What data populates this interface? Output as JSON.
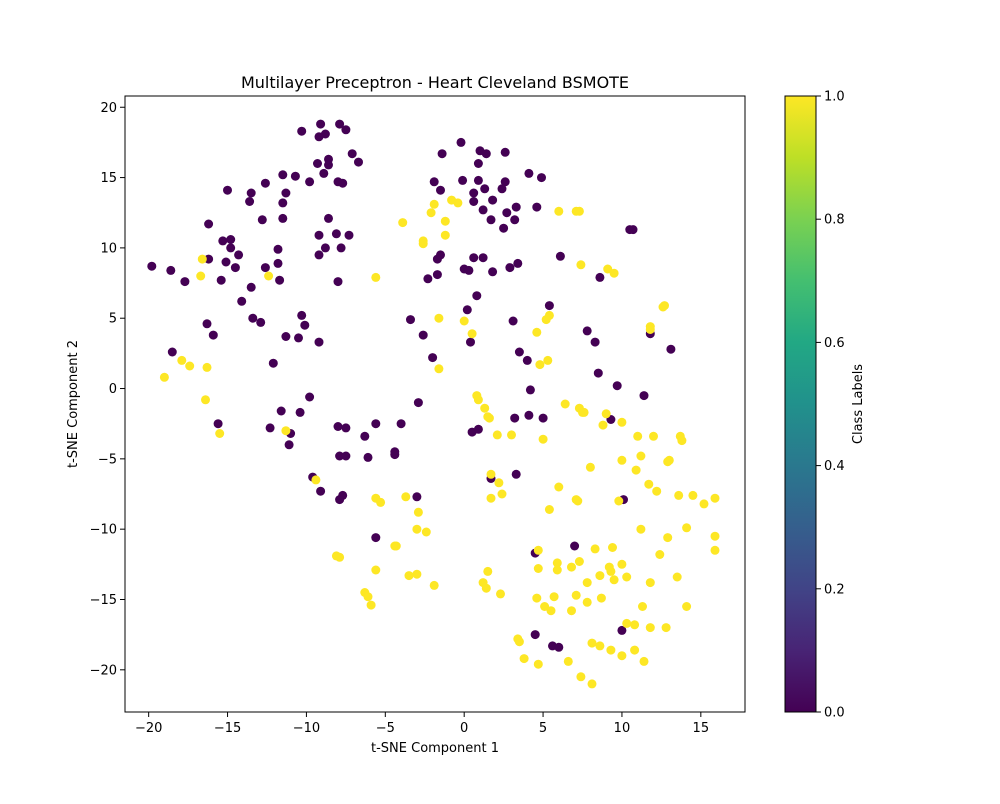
{
  "chart_data": {
    "type": "scatter",
    "title": "Multilayer Preceptron - Heart Cleveland BSMOTE",
    "xlabel": "t-SNE Component 1",
    "ylabel": "t-SNE Component 2",
    "xlim": [
      -21.5,
      17.8
    ],
    "ylim": [
      -23.0,
      20.8
    ],
    "xticks": [
      -20,
      -15,
      -10,
      -5,
      0,
      5,
      10,
      15
    ],
    "yticks": [
      -20,
      -15,
      -10,
      -5,
      0,
      5,
      10,
      15,
      20
    ],
    "grid": false,
    "colorbar": {
      "label": "Class Labels",
      "colormap": "viridis",
      "range": [
        0.0,
        1.0
      ],
      "ticks": [
        "0.0",
        "0.2",
        "0.4",
        "0.6",
        "0.8",
        "1.0"
      ]
    },
    "classes": [
      {
        "value": 0,
        "color": "#440154"
      },
      {
        "value": 1,
        "color": "#fde725"
      }
    ],
    "series": [
      {
        "label_value": 0,
        "points": [
          [
            -10.3,
            18.3
          ],
          [
            -9.1,
            18.8
          ],
          [
            -8.8,
            18.1
          ],
          [
            -7.9,
            18.8
          ],
          [
            -7.5,
            18.4
          ],
          [
            -9.2,
            17.9
          ],
          [
            -7.1,
            16.7
          ],
          [
            -6.7,
            16.1
          ],
          [
            -8.6,
            16.3
          ],
          [
            -8.6,
            15.9
          ],
          [
            -9.3,
            16.0
          ],
          [
            -8.9,
            15.3
          ],
          [
            -8.0,
            14.7
          ],
          [
            -7.7,
            14.6
          ],
          [
            -9.8,
            14.7
          ],
          [
            -10.7,
            15.1
          ],
          [
            -11.5,
            15.2
          ],
          [
            -12.6,
            14.6
          ],
          [
            -13.5,
            13.9
          ],
          [
            -15.0,
            14.1
          ],
          [
            -13.6,
            13.3
          ],
          [
            -11.3,
            13.9
          ],
          [
            -11.5,
            13.2
          ],
          [
            -11.5,
            12.1
          ],
          [
            -12.8,
            12.0
          ],
          [
            -8.6,
            12.1
          ],
          [
            -8.1,
            11.0
          ],
          [
            -9.2,
            10.9
          ],
          [
            -7.3,
            10.9
          ],
          [
            -8.8,
            10.0
          ],
          [
            -7.8,
            10.0
          ],
          [
            -9.2,
            9.5
          ],
          [
            -14.8,
            10.6
          ],
          [
            -15.3,
            10.5
          ],
          [
            -14.8,
            10.0
          ],
          [
            -14.3,
            9.5
          ],
          [
            -15.1,
            9.0
          ],
          [
            -14.5,
            8.6
          ],
          [
            -16.2,
            9.2
          ],
          [
            -11.8,
            9.9
          ],
          [
            -11.8,
            8.9
          ],
          [
            -12.6,
            8.6
          ],
          [
            -11.7,
            7.7
          ],
          [
            -15.4,
            7.7
          ],
          [
            -16.2,
            11.7
          ],
          [
            -13.5,
            7.2
          ],
          [
            -14.1,
            6.2
          ],
          [
            -18.6,
            8.4
          ],
          [
            -19.8,
            8.7
          ],
          [
            -17.7,
            7.6
          ],
          [
            -8.0,
            7.6
          ],
          [
            -10.3,
            5.2
          ],
          [
            -10.1,
            4.5
          ],
          [
            -13.4,
            5.0
          ],
          [
            -12.9,
            4.7
          ],
          [
            -16.3,
            4.6
          ],
          [
            -15.9,
            3.8
          ],
          [
            -11.3,
            3.7
          ],
          [
            -10.5,
            3.6
          ],
          [
            -9.2,
            3.3
          ],
          [
            -18.5,
            2.6
          ],
          [
            -12.1,
            1.8
          ],
          [
            -9.8,
            -0.6
          ],
          [
            -11.6,
            -1.6
          ],
          [
            -10.4,
            -1.7
          ],
          [
            -15.6,
            -2.5
          ],
          [
            -12.3,
            -2.8
          ],
          [
            -11.0,
            -3.2
          ],
          [
            -11.1,
            -4.0
          ],
          [
            -8.0,
            -2.7
          ],
          [
            -7.5,
            -2.8
          ],
          [
            -5.6,
            -2.5
          ],
          [
            -4.0,
            -2.5
          ],
          [
            -2.9,
            -1.0
          ],
          [
            -6.3,
            -3.4
          ],
          [
            -4.4,
            -4.5
          ],
          [
            -4.4,
            -4.7
          ],
          [
            -7.9,
            -4.8
          ],
          [
            -7.5,
            -4.8
          ],
          [
            -6.1,
            -4.9
          ],
          [
            -9.6,
            -6.3
          ],
          [
            -9.1,
            -7.3
          ],
          [
            -7.7,
            -7.6
          ],
          [
            -7.9,
            -7.9
          ],
          [
            -3.0,
            -7.7
          ],
          [
            -5.6,
            -10.6
          ],
          [
            -0.2,
            17.5
          ],
          [
            -1.4,
            16.7
          ],
          [
            1.0,
            16.9
          ],
          [
            1.4,
            16.7
          ],
          [
            2.6,
            16.8
          ],
          [
            -0.1,
            14.8
          ],
          [
            0.9,
            14.8
          ],
          [
            -1.9,
            14.7
          ],
          [
            2.6,
            14.7
          ],
          [
            1.3,
            14.2
          ],
          [
            2.4,
            14.2
          ],
          [
            3.3,
            12.9
          ],
          [
            1.8,
            13.4
          ],
          [
            0.6,
            13.9
          ],
          [
            0.6,
            13.3
          ],
          [
            4.1,
            15.3
          ],
          [
            4.9,
            15.0
          ],
          [
            -1.5,
            14.1
          ],
          [
            2.7,
            12.5
          ],
          [
            1.2,
            12.7
          ],
          [
            4.6,
            12.9
          ],
          [
            3.2,
            12.0
          ],
          [
            1.7,
            12.0
          ],
          [
            2.5,
            11.4
          ],
          [
            0.9,
            16.0
          ],
          [
            -1.5,
            9.5
          ],
          [
            -1.7,
            9.2
          ],
          [
            0.6,
            9.3
          ],
          [
            1.2,
            9.3
          ],
          [
            0.0,
            8.5
          ],
          [
            0.3,
            8.4
          ],
          [
            1.8,
            8.3
          ],
          [
            2.9,
            8.6
          ],
          [
            3.4,
            8.9
          ],
          [
            -2.3,
            7.8
          ],
          [
            -1.7,
            8.1
          ],
          [
            6.1,
            9.4
          ],
          [
            8.6,
            7.9
          ],
          [
            0.2,
            5.6
          ],
          [
            0.8,
            6.6
          ],
          [
            5.4,
            5.9
          ],
          [
            3.1,
            4.8
          ],
          [
            -3.4,
            4.9
          ],
          [
            -2.6,
            3.8
          ],
          [
            0.4,
            3.3
          ],
          [
            3.5,
            2.6
          ],
          [
            -2.0,
            2.2
          ],
          [
            4.0,
            2.0
          ],
          [
            7.8,
            4.1
          ],
          [
            8.3,
            3.3
          ],
          [
            13.1,
            2.8
          ],
          [
            11.8,
            3.9
          ],
          [
            8.5,
            1.1
          ],
          [
            9.7,
            0.2
          ],
          [
            4.2,
            -0.1
          ],
          [
            11.4,
            -0.5
          ],
          [
            3.2,
            -2.1
          ],
          [
            4.1,
            -1.9
          ],
          [
            5.0,
            -2.1
          ],
          [
            9.3,
            -2.2
          ],
          [
            0.5,
            -3.1
          ],
          [
            0.9,
            -2.9
          ],
          [
            3.3,
            -6.1
          ],
          [
            1.7,
            -6.4
          ],
          [
            10.1,
            -7.9
          ],
          [
            7.0,
            -11.2
          ],
          [
            4.5,
            -11.7
          ],
          [
            10.0,
            -17.2
          ],
          [
            4.5,
            -17.5
          ],
          [
            5.6,
            -18.3
          ],
          [
            6.0,
            -18.4
          ],
          [
            10.5,
            11.3
          ],
          [
            10.7,
            11.3
          ]
        ]
      },
      {
        "label_value": 1,
        "points": [
          [
            -16.6,
            9.2
          ],
          [
            -16.7,
            8.0
          ],
          [
            -12.4,
            8.0
          ],
          [
            -5.6,
            7.9
          ],
          [
            -3.9,
            11.8
          ],
          [
            -2.1,
            12.5
          ],
          [
            -1.9,
            13.1
          ],
          [
            -0.8,
            13.4
          ],
          [
            -0.4,
            13.2
          ],
          [
            -1.2,
            11.9
          ],
          [
            -1.2,
            10.9
          ],
          [
            -2.6,
            10.5
          ],
          [
            -2.6,
            10.3
          ],
          [
            6.0,
            12.6
          ],
          [
            7.1,
            12.6
          ],
          [
            7.3,
            12.6
          ],
          [
            7.4,
            8.8
          ],
          [
            9.1,
            8.5
          ],
          [
            9.5,
            8.2
          ],
          [
            12.6,
            5.8
          ],
          [
            12.7,
            5.9
          ],
          [
            11.8,
            4.4
          ],
          [
            11.8,
            4.2
          ],
          [
            5.2,
            4.9
          ],
          [
            5.4,
            5.2
          ],
          [
            4.6,
            4.0
          ],
          [
            0.0,
            4.8
          ],
          [
            0.5,
            3.9
          ],
          [
            -1.6,
            5.0
          ],
          [
            -1.6,
            1.4
          ],
          [
            5.3,
            2.0
          ],
          [
            4.8,
            1.7
          ],
          [
            -17.9,
            2.0
          ],
          [
            -17.4,
            1.6
          ],
          [
            -16.3,
            1.5
          ],
          [
            -19.0,
            0.8
          ],
          [
            -16.4,
            -0.8
          ],
          [
            -15.5,
            -3.2
          ],
          [
            -11.3,
            -3.0
          ],
          [
            0.8,
            -0.5
          ],
          [
            0.9,
            -0.8
          ],
          [
            1.3,
            -1.4
          ],
          [
            1.6,
            -2.1
          ],
          [
            1.5,
            -2.0
          ],
          [
            2.1,
            -3.3
          ],
          [
            3.0,
            -3.3
          ],
          [
            5.0,
            -3.6
          ],
          [
            6.4,
            -1.1
          ],
          [
            7.3,
            -1.4
          ],
          [
            7.5,
            -1.7
          ],
          [
            7.6,
            -1.7
          ],
          [
            8.8,
            -2.6
          ],
          [
            9.0,
            -1.8
          ],
          [
            10.0,
            -2.4
          ],
          [
            11.0,
            -3.4
          ],
          [
            12.0,
            -3.4
          ],
          [
            11.2,
            -4.8
          ],
          [
            10.0,
            -5.1
          ],
          [
            12.9,
            -5.2
          ],
          [
            13.0,
            -5.1
          ],
          [
            13.7,
            -3.4
          ],
          [
            13.8,
            -3.7
          ],
          [
            8.0,
            -5.6
          ],
          [
            10.9,
            -5.8
          ],
          [
            11.7,
            -6.8
          ],
          [
            12.2,
            -7.3
          ],
          [
            6.0,
            -7.0
          ],
          [
            7.1,
            -7.9
          ],
          [
            7.2,
            -8.0
          ],
          [
            9.8,
            -8.0
          ],
          [
            13.6,
            -7.6
          ],
          [
            14.5,
            -7.6
          ],
          [
            15.2,
            -8.2
          ],
          [
            15.9,
            -7.8
          ],
          [
            15.9,
            -10.5
          ],
          [
            15.9,
            -11.5
          ],
          [
            14.1,
            -9.9
          ],
          [
            11.2,
            -10.0
          ],
          [
            12.9,
            -10.6
          ],
          [
            12.4,
            -11.8
          ],
          [
            11.8,
            -13.8
          ],
          [
            13.5,
            -13.4
          ],
          [
            14.1,
            -15.5
          ],
          [
            11.3,
            -15.5
          ],
          [
            10.3,
            -16.7
          ],
          [
            10.8,
            -16.8
          ],
          [
            11.8,
            -17.0
          ],
          [
            12.8,
            -17.0
          ],
          [
            10.8,
            -18.6
          ],
          [
            11.4,
            -19.4
          ],
          [
            9.3,
            -18.6
          ],
          [
            10.0,
            -19.0
          ],
          [
            8.6,
            -18.3
          ],
          [
            8.1,
            -18.1
          ],
          [
            6.6,
            -19.4
          ],
          [
            4.7,
            -19.6
          ],
          [
            3.8,
            -19.2
          ],
          [
            3.4,
            -17.8
          ],
          [
            3.5,
            -18.0
          ],
          [
            7.4,
            -20.5
          ],
          [
            8.1,
            -21.0
          ],
          [
            9.4,
            -11.3
          ],
          [
            8.3,
            -11.4
          ],
          [
            7.3,
            -12.3
          ],
          [
            9.2,
            -12.7
          ],
          [
            9.3,
            -13.0
          ],
          [
            10.0,
            -12.5
          ],
          [
            10.3,
            -13.4
          ],
          [
            9.5,
            -13.6
          ],
          [
            8.6,
            -13.3
          ],
          [
            7.8,
            -13.8
          ],
          [
            6.8,
            -12.7
          ],
          [
            5.9,
            -12.4
          ],
          [
            5.9,
            -12.9
          ],
          [
            4.7,
            -12.8
          ],
          [
            4.7,
            -11.5
          ],
          [
            4.6,
            -14.9
          ],
          [
            5.1,
            -15.5
          ],
          [
            5.5,
            -15.8
          ],
          [
            6.8,
            -15.8
          ],
          [
            7.1,
            -14.7
          ],
          [
            7.8,
            -15.2
          ],
          [
            8.7,
            -14.9
          ],
          [
            5.7,
            -14.8
          ],
          [
            2.3,
            -14.6
          ],
          [
            2.4,
            -7.5
          ],
          [
            2.2,
            -6.7
          ],
          [
            1.7,
            -6.1
          ],
          [
            1.7,
            -7.8
          ],
          [
            5.4,
            -8.6
          ],
          [
            1.5,
            -13.0
          ],
          [
            1.2,
            -13.8
          ],
          [
            1.4,
            -14.2
          ],
          [
            -1.9,
            -14.0
          ],
          [
            -3.0,
            -13.2
          ],
          [
            -3.5,
            -13.3
          ],
          [
            -2.4,
            -10.2
          ],
          [
            -3.0,
            -10.0
          ],
          [
            -2.9,
            -8.8
          ],
          [
            -3.7,
            -7.7
          ],
          [
            -5.6,
            -7.8
          ],
          [
            -5.3,
            -8.1
          ],
          [
            -4.4,
            -11.2
          ],
          [
            -4.3,
            -11.2
          ],
          [
            -5.6,
            -12.9
          ],
          [
            -7.9,
            -12.0
          ],
          [
            -8.1,
            -11.9
          ],
          [
            -6.3,
            -14.5
          ],
          [
            -6.1,
            -14.8
          ],
          [
            -5.9,
            -15.4
          ],
          [
            -9.4,
            -6.5
          ]
        ]
      }
    ]
  }
}
